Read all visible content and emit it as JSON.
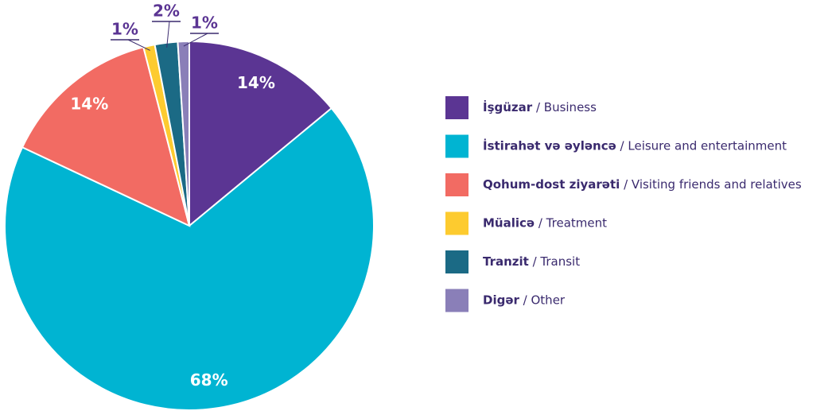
{
  "chart_data": {
    "type": "pie",
    "categories": [
      "İşgüzar / Business",
      "İstirahət və əyləncə / Leisure and entertainment",
      "Qohum-dost ziyarəti / Visiting friends and relatives",
      "Müalicə / Treatment",
      "Tranzit / Transit",
      "Digər / Other"
    ],
    "values": [
      14,
      68,
      14,
      1,
      2,
      1
    ],
    "value_labels": [
      "14%",
      "68%",
      "14%",
      "1%",
      "2%",
      "1%"
    ],
    "colors": [
      "#5b3593",
      "#00b4d2",
      "#f26b63",
      "#fdcb2f",
      "#1b6a85",
      "#8a7fb8"
    ],
    "legend": "right"
  }
}
